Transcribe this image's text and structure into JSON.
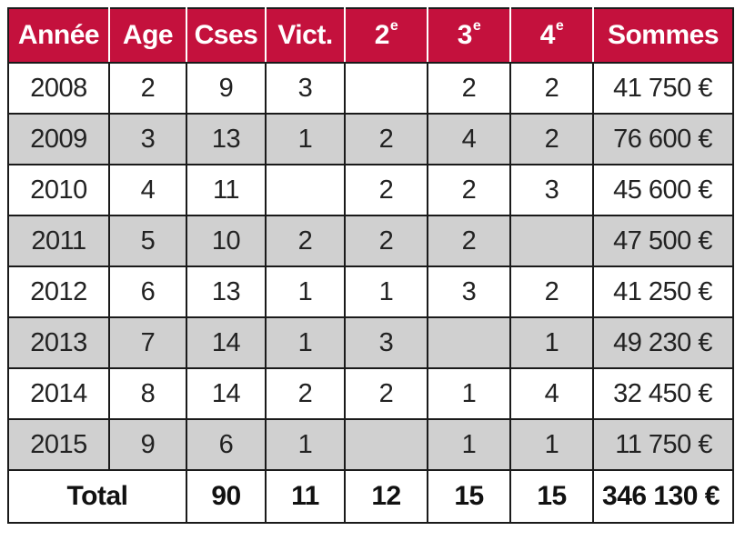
{
  "headers": {
    "year": "Année",
    "age": "Age",
    "races": "Cses",
    "wins": "Vict.",
    "second_num": "2",
    "second_sup": "e",
    "third_num": "3",
    "third_sup": "e",
    "fourth_num": "4",
    "fourth_sup": "e",
    "sums": "Sommes"
  },
  "rows": [
    {
      "year": "2008",
      "age": "2",
      "races": "9",
      "wins": "3",
      "second": "",
      "third": "2",
      "fourth": "2",
      "sum": "41 750 €"
    },
    {
      "year": "2009",
      "age": "3",
      "races": "13",
      "wins": "1",
      "second": "2",
      "third": "4",
      "fourth": "2",
      "sum": "76 600 €"
    },
    {
      "year": "2010",
      "age": "4",
      "races": "11",
      "wins": "",
      "second": "2",
      "third": "2",
      "fourth": "3",
      "sum": "45 600 €"
    },
    {
      "year": "2011",
      "age": "5",
      "races": "10",
      "wins": "2",
      "second": "2",
      "third": "2",
      "fourth": "",
      "sum": "47 500 €"
    },
    {
      "year": "2012",
      "age": "6",
      "races": "13",
      "wins": "1",
      "second": "1",
      "third": "3",
      "fourth": "2",
      "sum": "41 250 €"
    },
    {
      "year": "2013",
      "age": "7",
      "races": "14",
      "wins": "1",
      "second": "3",
      "third": "",
      "fourth": "1",
      "sum": "49 230 €"
    },
    {
      "year": "2014",
      "age": "8",
      "races": "14",
      "wins": "2",
      "second": "2",
      "third": "1",
      "fourth": "4",
      "sum": "32 450 €"
    },
    {
      "year": "2015",
      "age": "9",
      "races": "6",
      "wins": "1",
      "second": "",
      "third": "1",
      "fourth": "1",
      "sum": "11 750 €"
    }
  ],
  "total": {
    "label": "Total",
    "races": "90",
    "wins": "11",
    "second": "12",
    "third": "15",
    "fourth": "15",
    "sum": "346 130 €"
  },
  "colors": {
    "header_bg": "#c4113d",
    "header_text": "#ffffff",
    "row_alt_bg": "#d0d0d0",
    "border": "#1a1a1a"
  }
}
